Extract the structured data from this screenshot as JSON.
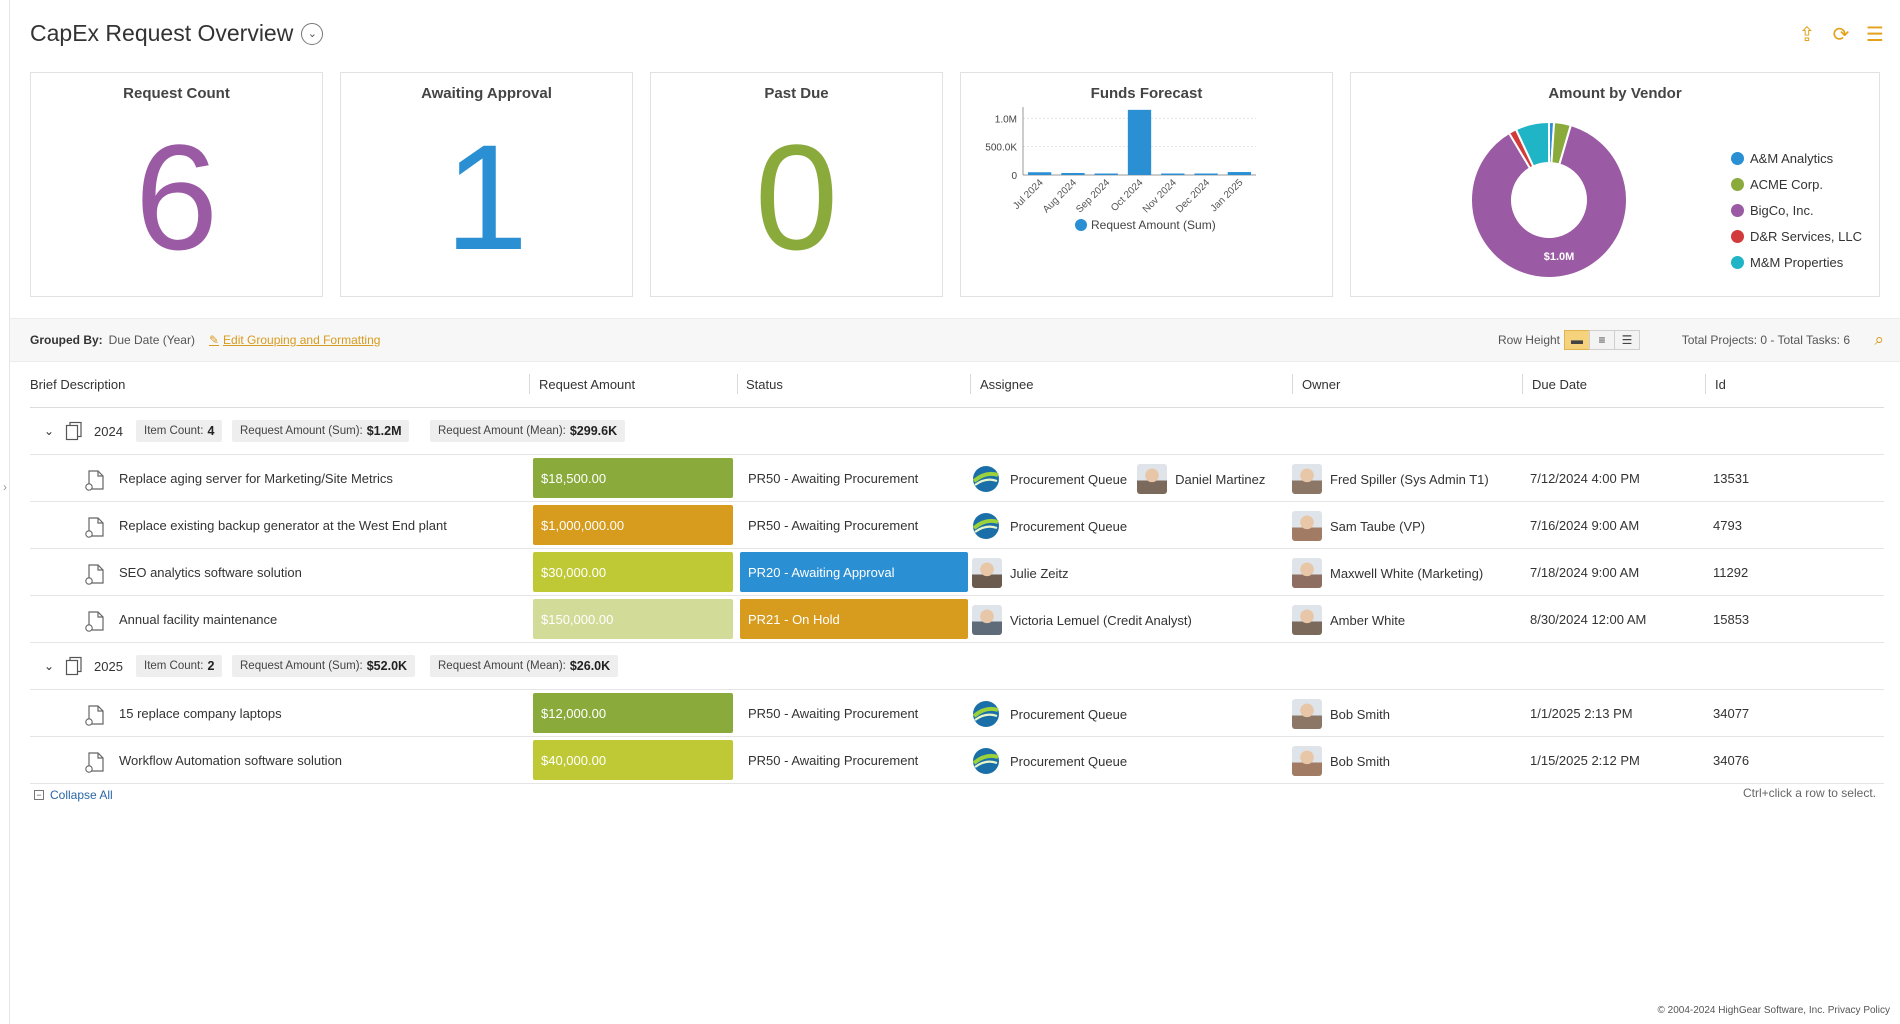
{
  "header": {
    "title": "CapEx Request Overview"
  },
  "cards": [
    {
      "title": "Request Count",
      "value": "6",
      "color": "#9b5aa4"
    },
    {
      "title": "Awaiting Approval",
      "value": "1",
      "color": "#2a8fd3"
    },
    {
      "title": "Past Due",
      "value": "0",
      "color": "#8aab3c"
    }
  ],
  "funds_forecast": {
    "title": "Funds Forecast"
  },
  "amount_by_vendor": {
    "title": "Amount by Vendor",
    "center_label": "$1.0M"
  },
  "chart_data": [
    {
      "type": "bar",
      "title": "Funds Forecast",
      "categories": [
        "Jul 2024",
        "Aug 2024",
        "Sep 2024",
        "Oct 2024",
        "Nov 2024",
        "Dec 2024",
        "Jan 2025"
      ],
      "series": [
        {
          "name": "Request Amount (Sum)",
          "values": [
            48500,
            12000,
            0,
            1150000,
            0,
            0,
            52000
          ]
        }
      ],
      "y_ticks": [
        "0",
        "500.0K",
        "1.0M"
      ],
      "ylim": [
        0,
        1200000
      ],
      "color": "#2a8fd3",
      "legend": "bottom"
    },
    {
      "type": "pie",
      "title": "Amount by Vendor",
      "labels": [
        "A&M Analytics",
        "ACME Corp.",
        "BigCo, Inc.",
        "D&R Services, LLC",
        "M&M Properties"
      ],
      "values": [
        12000,
        40000,
        1000000,
        18500,
        80000
      ],
      "colors": [
        "#2a8fd3",
        "#8aab3c",
        "#9b5aa4",
        "#d23b3b",
        "#1fb5c7"
      ],
      "legend": "right"
    }
  ],
  "toolbar": {
    "grouped_by_label": "Grouped By:",
    "grouped_by_value": "Due Date (Year)",
    "edit_link": "Edit Grouping and Formatting",
    "row_height_label": "Row Height",
    "totals": "Total Projects: 0 - Total Tasks: 6"
  },
  "columns": [
    "Brief Description",
    "Request Amount",
    "Status",
    "Assignee",
    "Owner",
    "Due Date",
    "Id"
  ],
  "groups": [
    {
      "year": "2024",
      "item_count_label": "Item Count:",
      "item_count": "4",
      "sum_label": "Request Amount (Sum):",
      "sum": "$1.2M",
      "mean_label": "Request Amount (Mean):",
      "mean": "$299.6K",
      "rows": [
        {
          "desc": "Replace aging server for Marketing/Site Metrics",
          "amount": "$18,500.00",
          "amount_color": "#8aab3c",
          "status": "PR50 - Awaiting Procurement",
          "status_bg": "",
          "status_fg": "#333",
          "assignee": "Procurement Queue",
          "assignee2": "Daniel Martinez",
          "owner": "Fred Spiller (Sys Admin T1)",
          "due": "7/12/2024  4:00 PM",
          "id": "13531"
        },
        {
          "desc": "Replace existing backup generator at the West End plant",
          "amount": "$1,000,000.00",
          "amount_color": "#d79b1d",
          "status": "PR50 - Awaiting Procurement",
          "status_bg": "",
          "status_fg": "#333",
          "assignee": "Procurement Queue",
          "assignee2": "",
          "owner": "Sam Taube (VP)",
          "due": "7/16/2024  9:00 AM",
          "id": "4793"
        },
        {
          "desc": "SEO analytics software solution",
          "amount": "$30,000.00",
          "amount_color": "#bfc935",
          "status": "PR20 - Awaiting Approval",
          "status_bg": "#2a8fd3",
          "status_fg": "#fff",
          "assignee": "Julie Zeitz",
          "assignee2": "",
          "owner": "Maxwell White (Marketing)",
          "due": "7/18/2024  9:00 AM",
          "id": "11292"
        },
        {
          "desc": "Annual facility maintenance",
          "amount": "$150,000.00",
          "amount_color": "#d2dc98",
          "status": "PR21 - On Hold",
          "status_bg": "#d79b1d",
          "status_fg": "#fff",
          "assignee": "Victoria Lemuel (Credit Analyst)",
          "assignee2": "",
          "owner": "Amber White",
          "due": "8/30/2024  12:00 AM",
          "id": "15853"
        }
      ]
    },
    {
      "year": "2025",
      "item_count_label": "Item Count:",
      "item_count": "2",
      "sum_label": "Request Amount (Sum):",
      "sum": "$52.0K",
      "mean_label": "Request Amount (Mean):",
      "mean": "$26.0K",
      "rows": [
        {
          "desc": "15 replace company laptops",
          "amount": "$12,000.00",
          "amount_color": "#8aab3c",
          "status": "PR50 - Awaiting Procurement",
          "status_bg": "",
          "status_fg": "#333",
          "assignee": "Procurement Queue",
          "assignee2": "",
          "owner": "Bob Smith",
          "due": "1/1/2025  2:13 PM",
          "id": "34077"
        },
        {
          "desc": "Workflow Automation software solution",
          "amount": "$40,000.00",
          "amount_color": "#bfc935",
          "status": "PR50 - Awaiting Procurement",
          "status_bg": "",
          "status_fg": "#333",
          "assignee": "Procurement Queue",
          "assignee2": "",
          "owner": "Bob Smith",
          "due": "1/15/2025  2:12 PM",
          "id": "34076"
        }
      ]
    }
  ],
  "footer": {
    "collapse_all": "Collapse All",
    "ctrl_hint": "Ctrl+click a row to select.",
    "copyright": "© 2004-2024 HighGear Software, Inc. Privacy Policy"
  }
}
